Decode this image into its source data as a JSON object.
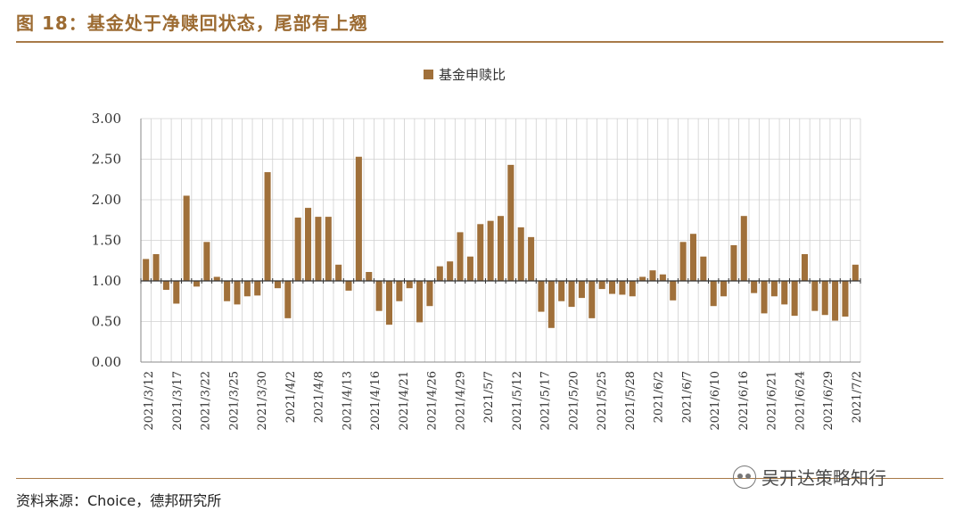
{
  "header": {
    "title": "图 18：基金处于净赎回状态，尾部有上翘"
  },
  "footer": {
    "source": "资料来源：Choice，德邦研究所"
  },
  "watermark": {
    "text": "吴开达策略知行",
    "icon": "wechat-icon"
  },
  "colors": {
    "bar": "#a0703a",
    "accent": "#9c6b32",
    "grid": "#d0d0d0"
  },
  "chart_data": {
    "type": "bar",
    "title": "",
    "legend": {
      "entries": [
        "基金申赎比"
      ],
      "placement": "top-center"
    },
    "xlabel": "",
    "ylabel": "",
    "ylim": [
      0,
      3
    ],
    "baseline": 1,
    "grid": true,
    "yticks": [
      "0.00",
      "0.50",
      "1.00",
      "1.50",
      "2.00",
      "2.50",
      "3.00"
    ],
    "xtick_labels": [
      "2021/3/12",
      "2021/3/17",
      "2021/3/22",
      "2021/3/25",
      "2021/3/30",
      "2021/4/2",
      "2021/4/8",
      "2021/4/13",
      "2021/4/16",
      "2021/4/21",
      "2021/4/26",
      "2021/4/29",
      "2021/5/7",
      "2021/5/12",
      "2021/5/17",
      "2021/5/20",
      "2021/5/25",
      "2021/5/28",
      "2021/6/2",
      "2021/6/7",
      "2021/6/10",
      "2021/6/16",
      "2021/6/21",
      "2021/6/24",
      "2021/6/29",
      "2021/7/2"
    ],
    "series": [
      {
        "name": "基金申赎比",
        "values": [
          1.27,
          1.33,
          0.89,
          0.72,
          2.05,
          0.93,
          1.48,
          1.05,
          0.75,
          0.71,
          0.81,
          0.82,
          2.34,
          0.91,
          0.54,
          1.78,
          1.9,
          1.79,
          1.79,
          1.2,
          0.88,
          2.53,
          1.11,
          0.63,
          0.46,
          0.75,
          0.91,
          0.49,
          0.69,
          1.18,
          1.24,
          1.6,
          1.3,
          1.7,
          1.74,
          1.8,
          2.43,
          1.66,
          1.54,
          0.62,
          0.42,
          0.75,
          0.68,
          0.79,
          0.54,
          0.9,
          0.84,
          0.83,
          0.81,
          1.05,
          1.13,
          1.08,
          0.76,
          1.48,
          1.58,
          1.3,
          0.69,
          0.81,
          1.44,
          1.8,
          0.85,
          0.6,
          0.81,
          0.71,
          0.57,
          1.33,
          0.63,
          0.58,
          0.51,
          0.56,
          1.2
        ]
      }
    ]
  }
}
